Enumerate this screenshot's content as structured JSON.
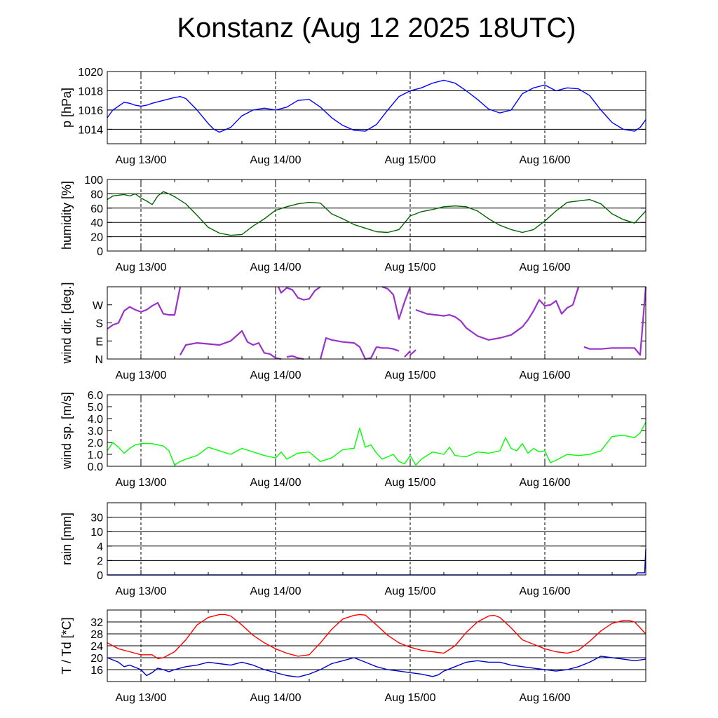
{
  "title": "Konstanz (Aug 12 2025 18UTC)",
  "chart_data": [
    {
      "type": "line",
      "id": "pressure",
      "ylabel": "p [hPa]",
      "ylim": [
        1012.5,
        1020
      ],
      "yticks": [
        1014,
        1016,
        1018,
        1020
      ],
      "ytick_labels": [
        "1014",
        "1016",
        "1018",
        "1020"
      ],
      "grid_lines": [
        1014,
        1016,
        1018
      ],
      "xlim": [
        0,
        96
      ],
      "xticks_hours": [
        6,
        30,
        54,
        78
      ],
      "xtick_labels": [
        "Aug 13/00",
        "Aug 14/00",
        "Aug 15/00",
        "Aug 16/00"
      ],
      "series": [
        {
          "color": "#0000ff",
          "x": [
            0,
            1,
            2,
            3,
            4,
            5,
            6,
            7,
            8,
            10,
            12,
            13,
            14,
            16,
            18,
            19,
            20,
            22,
            24,
            26,
            28,
            30,
            32,
            34,
            36,
            38,
            40,
            42,
            44,
            46,
            48,
            50,
            52,
            54,
            56,
            58,
            60,
            62,
            64,
            66,
            68,
            70,
            72,
            74,
            76,
            78,
            80,
            82,
            84,
            86,
            88,
            90,
            92,
            94,
            95,
            96
          ],
          "y": [
            1015.2,
            1016.0,
            1016.4,
            1016.8,
            1016.7,
            1016.5,
            1016.4,
            1016.5,
            1016.7,
            1017.0,
            1017.3,
            1017.4,
            1017.2,
            1016.0,
            1014.6,
            1014.0,
            1013.7,
            1014.2,
            1015.4,
            1016.0,
            1016.2,
            1016.0,
            1016.3,
            1017.0,
            1017.1,
            1016.3,
            1015.2,
            1014.4,
            1013.9,
            1013.8,
            1014.5,
            1016.0,
            1017.4,
            1018.0,
            1018.3,
            1018.8,
            1019.1,
            1018.8,
            1018.0,
            1017.1,
            1016.1,
            1015.7,
            1016.0,
            1017.7,
            1018.3,
            1018.6,
            1018.0,
            1018.3,
            1018.2,
            1017.5,
            1016.0,
            1014.7,
            1014.0,
            1013.8,
            1014.2,
            1015.0
          ]
        }
      ]
    },
    {
      "type": "line",
      "id": "humidity",
      "ylabel": "humidity [%]",
      "ylim": [
        0,
        100
      ],
      "yticks": [
        0,
        20,
        40,
        60,
        80,
        100
      ],
      "ytick_labels": [
        "0",
        "20",
        "40",
        "60",
        "80",
        "100"
      ],
      "grid_lines": [
        20,
        40,
        60,
        80
      ],
      "xlim": [
        0,
        96
      ],
      "xticks_hours": [
        6,
        30,
        54,
        78
      ],
      "xtick_labels": [
        "Aug 13/00",
        "Aug 14/00",
        "Aug 15/00",
        "Aug 16/00"
      ],
      "series": [
        {
          "color": "#006400",
          "x": [
            0,
            1,
            2,
            3,
            4,
            5,
            6,
            7,
            8,
            9,
            10,
            11,
            12,
            14,
            16,
            18,
            20,
            22,
            24,
            26,
            28,
            30,
            32,
            34,
            36,
            38,
            40,
            42,
            44,
            46,
            48,
            50,
            52,
            54,
            56,
            58,
            60,
            62,
            64,
            66,
            68,
            70,
            72,
            74,
            76,
            78,
            80,
            82,
            84,
            86,
            88,
            90,
            92,
            94,
            96
          ],
          "y": [
            72,
            77,
            78,
            79,
            77,
            80,
            74,
            70,
            65,
            77,
            83,
            80,
            76,
            66,
            50,
            33,
            25,
            22,
            23,
            35,
            45,
            57,
            62,
            66,
            68,
            67,
            52,
            45,
            37,
            32,
            27,
            26,
            30,
            49,
            55,
            58,
            62,
            63,
            62,
            56,
            45,
            36,
            30,
            26,
            30,
            42,
            56,
            68,
            70,
            72,
            66,
            52,
            44,
            39,
            56
          ]
        }
      ]
    },
    {
      "type": "scatter",
      "id": "wind-direction",
      "ylabel": "wind dir. [deg.]",
      "ylim": [
        0,
        360
      ],
      "yticks": [
        0,
        90,
        180,
        270
      ],
      "ytick_labels": [
        "N",
        "E",
        "S",
        "W"
      ],
      "grid_lines": [],
      "xlim": [
        0,
        96
      ],
      "xticks_hours": [
        6,
        30,
        54,
        78
      ],
      "xtick_labels": [
        "Aug 13/00",
        "Aug 14/00",
        "Aug 15/00",
        "Aug 16/00"
      ],
      "series": [
        {
          "color": "#9932cc",
          "segments": [
            {
              "x": [
                0,
                1,
                2,
                3,
                4,
                5,
                6,
                7,
                8,
                9,
                10,
                11,
                12,
                13
              ],
              "y": [
                150,
                170,
                180,
                240,
                260,
                245,
                235,
                245,
                265,
                280,
                225,
                220,
                220,
                360
              ]
            },
            {
              "x": [
                13,
                14,
                16,
                18,
                20,
                22,
                24,
                25,
                26,
                27,
                28,
                29,
                30,
                31
              ],
              "y": [
                20,
                70,
                80,
                75,
                70,
                90,
                140,
                85,
                70,
                80,
                30,
                25,
                5,
                0
              ]
            },
            {
              "x": [
                30.5,
                31,
                32,
                33,
                34,
                35,
                36,
                37,
                38
              ],
              "y": [
                360,
                330,
                355,
                345,
                305,
                295,
                300,
                340,
                360
              ]
            },
            {
              "x": [
                32,
                33,
                34,
                35
              ],
              "y": [
                10,
                15,
                5,
                0
              ]
            },
            {
              "x": [
                38,
                39,
                40,
                42,
                44,
                45,
                46,
                47,
                48
              ],
              "y": [
                0,
                105,
                95,
                85,
                80,
                60,
                0,
                5,
                60
              ]
            },
            {
              "x": [
                48,
                49,
                50,
                51,
                52
              ],
              "y": [
                60,
                55,
                55,
                50,
                40
              ]
            },
            {
              "x": [
                53,
                54
              ],
              "y": [
                10,
                40
              ]
            },
            {
              "x": [
                54,
                55
              ],
              "y": [
                20,
                45
              ]
            },
            {
              "x": [
                49,
                50,
                51,
                52,
                53,
                54
              ],
              "y": [
                360,
                350,
                320,
                200,
                285,
                360
              ]
            },
            {
              "x": [
                55,
                57,
                60,
                61,
                62,
                63,
                64,
                66,
                68,
                70,
                72,
                74,
                75,
                76,
                77,
                78,
                79,
                80,
                81,
                82,
                83
              ],
              "y": [
                245,
                225,
                215,
                220,
                210,
                190,
                155,
                115,
                95,
                105,
                120,
                160,
                195,
                240,
                295,
                265,
                270,
                290,
                225,
                255,
                270
              ]
            },
            {
              "x": [
                83,
                84
              ],
              "y": [
                270,
                360
              ]
            },
            {
              "x": [
                85,
                86,
                88,
                90,
                92,
                94,
                95,
                96
              ],
              "y": [
                60,
                50,
                50,
                55,
                55,
                55,
                20,
                360
              ]
            }
          ]
        }
      ]
    },
    {
      "type": "line",
      "id": "wind-speed",
      "ylabel": "wind sp. [m/s]",
      "ylim": [
        0,
        6
      ],
      "yticks": [
        0,
        1,
        2,
        3,
        4,
        5,
        6
      ],
      "ytick_labels": [
        "0.0",
        "1.0",
        "2.0",
        "3.0",
        "4.0",
        "5.0",
        "6.0"
      ],
      "grid_lines": [],
      "xlim": [
        0,
        96
      ],
      "xticks_hours": [
        6,
        30,
        54,
        78
      ],
      "xtick_labels": [
        "Aug 13/00",
        "Aug 14/00",
        "Aug 15/00",
        "Aug 16/00"
      ],
      "series": [
        {
          "color": "#00ff00",
          "x": [
            0,
            1,
            2,
            3,
            4,
            5,
            6,
            8,
            9,
            10,
            11,
            12,
            13,
            14,
            16,
            18,
            20,
            22,
            24,
            26,
            28,
            30,
            31,
            32,
            34,
            36,
            38,
            40,
            42,
            44,
            45,
            46,
            47,
            48,
            49,
            50,
            51,
            52,
            53,
            54,
            55,
            56,
            58,
            60,
            61,
            62,
            64,
            66,
            68,
            70,
            71,
            72,
            73,
            74,
            75,
            76,
            77,
            78,
            79,
            80,
            82,
            84,
            86,
            88,
            90,
            92,
            94,
            95,
            96
          ],
          "y": [
            1.3,
            2.0,
            1.6,
            1.1,
            1.5,
            1.8,
            1.9,
            1.9,
            1.8,
            1.7,
            1.3,
            0.1,
            0.4,
            0.6,
            0.9,
            1.6,
            1.3,
            1.0,
            1.5,
            1.2,
            0.9,
            0.7,
            1.2,
            0.6,
            1.1,
            1.2,
            0.4,
            0.7,
            1.4,
            1.5,
            3.2,
            1.6,
            1.8,
            1.1,
            0.6,
            0.8,
            1.0,
            0.4,
            0.2,
            0.9,
            0.1,
            0.6,
            1.2,
            1.0,
            1.6,
            0.9,
            0.8,
            1.2,
            1.1,
            1.3,
            2.4,
            1.5,
            1.3,
            1.9,
            1.1,
            1.5,
            1.2,
            1.3,
            0.3,
            0.5,
            1.0,
            0.9,
            1.0,
            1.3,
            2.5,
            2.6,
            2.4,
            2.8,
            3.7
          ]
        }
      ]
    },
    {
      "type": "line",
      "id": "rain",
      "ylabel": "rain [mm]",
      "ylim": [
        0,
        5
      ],
      "yticks": [
        0,
        1,
        2,
        3,
        4
      ],
      "ytick_labels": [
        "0",
        "2",
        "4",
        "10",
        "30"
      ],
      "grid_lines": [
        1,
        2,
        3,
        4
      ],
      "xlim": [
        0,
        96
      ],
      "xticks_hours": [
        6,
        30,
        54,
        78
      ],
      "xtick_labels": [
        "Aug 13/00",
        "Aug 14/00",
        "Aug 15/00",
        "Aug 16/00"
      ],
      "series": [
        {
          "color": "#0000cd",
          "x": [
            0,
            94.2,
            94.5,
            95.8,
            96
          ],
          "y": [
            0,
            0,
            0.15,
            0.15,
            1.8
          ]
        }
      ]
    },
    {
      "type": "line",
      "id": "temperature-dewpoint",
      "ylabel": "T / Td [*C]",
      "ylim": [
        12,
        36
      ],
      "yticks": [
        16,
        20,
        24,
        28,
        32
      ],
      "ytick_labels": [
        "16",
        "20",
        "24",
        "28",
        "32"
      ],
      "grid_lines": [
        16,
        20,
        24,
        28,
        32
      ],
      "xlim": [
        0,
        96
      ],
      "xticks_hours": [
        6,
        30,
        54,
        78
      ],
      "xtick_labels": [
        "Aug 13/00",
        "Aug 14/00",
        "Aug 15/00",
        "Aug 16/00"
      ],
      "series": [
        {
          "color": "#ff0000",
          "x": [
            0,
            2,
            4,
            6,
            8,
            9,
            10,
            12,
            14,
            16,
            18,
            20,
            21,
            22,
            24,
            26,
            28,
            30,
            32,
            34,
            36,
            38,
            40,
            42,
            44,
            45,
            46,
            48,
            50,
            52,
            54,
            56,
            58,
            60,
            62,
            64,
            66,
            68,
            69,
            70,
            72,
            74,
            76,
            78,
            80,
            82,
            84,
            86,
            88,
            90,
            92,
            93,
            94,
            96
          ],
          "y": [
            25,
            23,
            22,
            21,
            21,
            19.7,
            20,
            22,
            26,
            31,
            33.5,
            34.5,
            34.5,
            34,
            31,
            27.5,
            25,
            23,
            21.5,
            20.5,
            21,
            25,
            29.5,
            33,
            34.2,
            34.5,
            34.3,
            31,
            27.5,
            25,
            23.5,
            22.5,
            22,
            21.5,
            24,
            28.5,
            32,
            34,
            34.2,
            33.5,
            30,
            26,
            24.5,
            23,
            22,
            21.5,
            22.5,
            25.5,
            29,
            31.5,
            32.5,
            32.5,
            32,
            28
          ]
        },
        {
          "color": "#0000cd",
          "x": [
            0,
            2,
            3,
            4,
            6,
            7,
            8,
            9,
            10,
            11,
            12,
            14,
            16,
            18,
            20,
            22,
            24,
            26,
            28,
            30,
            32,
            34,
            36,
            38,
            40,
            42,
            44,
            46,
            48,
            50,
            52,
            54,
            56,
            58,
            59,
            60,
            62,
            64,
            66,
            68,
            70,
            72,
            74,
            76,
            78,
            80,
            82,
            84,
            86,
            88,
            90,
            92,
            94,
            96
          ],
          "y": [
            20,
            18.5,
            17,
            17.5,
            16,
            14,
            15,
            16.5,
            16,
            15.3,
            16,
            17,
            17.5,
            18.5,
            18,
            17.5,
            18.5,
            17.5,
            16,
            15,
            14,
            13.5,
            14.5,
            16,
            18,
            19,
            20,
            18.5,
            17,
            16,
            15.5,
            15,
            14.5,
            13.7,
            14.2,
            15.5,
            17,
            18.5,
            19,
            18.5,
            18.5,
            17.5,
            17,
            16.5,
            16,
            15.5,
            16,
            17,
            18.5,
            20.5,
            20,
            19.5,
            19,
            19.5
          ]
        }
      ]
    }
  ]
}
